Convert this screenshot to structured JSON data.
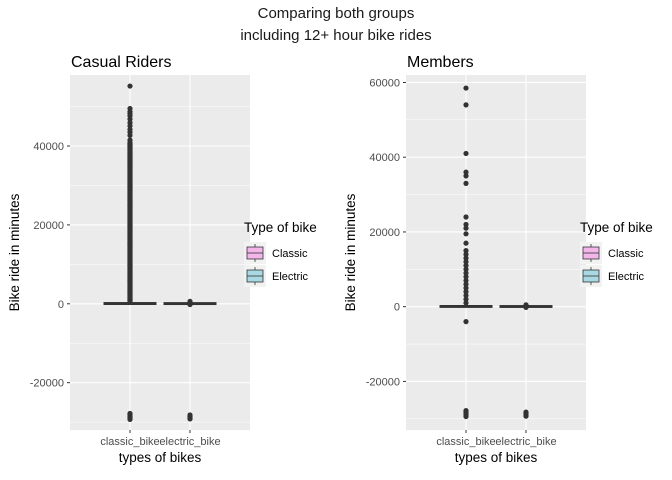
{
  "suptitle": {
    "line1": "Comparing both groups",
    "line2": "including 12+ hour bike rides"
  },
  "colors": {
    "panel_bg": "#ebebeb",
    "grid": "#ffffff",
    "classic_fill": "#f4b6e8",
    "electric_fill": "#a8d8e2",
    "box_line": "#333333",
    "outlier": "#333333"
  },
  "chart_data": [
    {
      "type": "box",
      "title": "Casual Riders",
      "xlabel": "types of bikes",
      "ylabel": "Bike ride in minutes",
      "categories": [
        "classic_bike",
        "electric_bike"
      ],
      "ylim": [
        -32000,
        58000
      ],
      "yticks": [
        -20000,
        0,
        20000,
        40000
      ],
      "grid": true,
      "legend": {
        "title": "Type of bike",
        "entries": [
          "Classic",
          "Electric"
        ],
        "position": "right"
      },
      "boxes": [
        {
          "name": "Classic",
          "category": "classic_bike",
          "q1": 20,
          "median": 50,
          "q3": 110,
          "whisker_low": -150,
          "whisker_high": 250,
          "outliers": [
            55200,
            49500,
            48700,
            48200,
            47600,
            46800,
            45900,
            45100,
            44200,
            43500,
            42700,
            41500,
            40000,
            38000,
            35000,
            30000,
            25000,
            20000,
            15000,
            10000,
            6000,
            3000,
            1000,
            -27800,
            -28100,
            -28500,
            -28900,
            -29300
          ]
        },
        {
          "name": "Electric",
          "category": "electric_bike",
          "q1": 10,
          "median": 40,
          "q3": 90,
          "whisker_low": -100,
          "whisker_high": 200,
          "outliers": [
            600,
            300,
            -200,
            -28200,
            -28600,
            -29000,
            -29200
          ]
        }
      ]
    },
    {
      "type": "box",
      "title": "Members",
      "xlabel": "types of bikes",
      "ylabel": "Bike ride in minutes",
      "categories": [
        "classic_bike",
        "electric_bike"
      ],
      "ylim": [
        -33000,
        62000
      ],
      "yticks": [
        -20000,
        0,
        20000,
        40000,
        60000
      ],
      "grid": true,
      "legend": {
        "title": "Type of bike",
        "entries": [
          "Classic",
          "Electric"
        ],
        "position": "right"
      },
      "boxes": [
        {
          "name": "Classic",
          "category": "classic_bike",
          "q1": 20,
          "median": 50,
          "q3": 100,
          "whisker_low": -150,
          "whisker_high": 250,
          "outliers": [
            58500,
            54000,
            41000,
            36000,
            35000,
            33000,
            24000,
            22000,
            21000,
            19500,
            17000,
            15000,
            14000,
            13000,
            12000,
            11000,
            10000,
            9000,
            8000,
            7000,
            6000,
            5000,
            4000,
            3000,
            2000,
            1000,
            -4000,
            -27800,
            -28200,
            -28600,
            -29000,
            -29400
          ]
        },
        {
          "name": "Electric",
          "category": "electric_bike",
          "q1": 10,
          "median": 40,
          "q3": 90,
          "whisker_low": -100,
          "whisker_high": 200,
          "outliers": [
            500,
            250,
            -200,
            -28200,
            -28600,
            -29000,
            -29300
          ]
        }
      ]
    }
  ]
}
